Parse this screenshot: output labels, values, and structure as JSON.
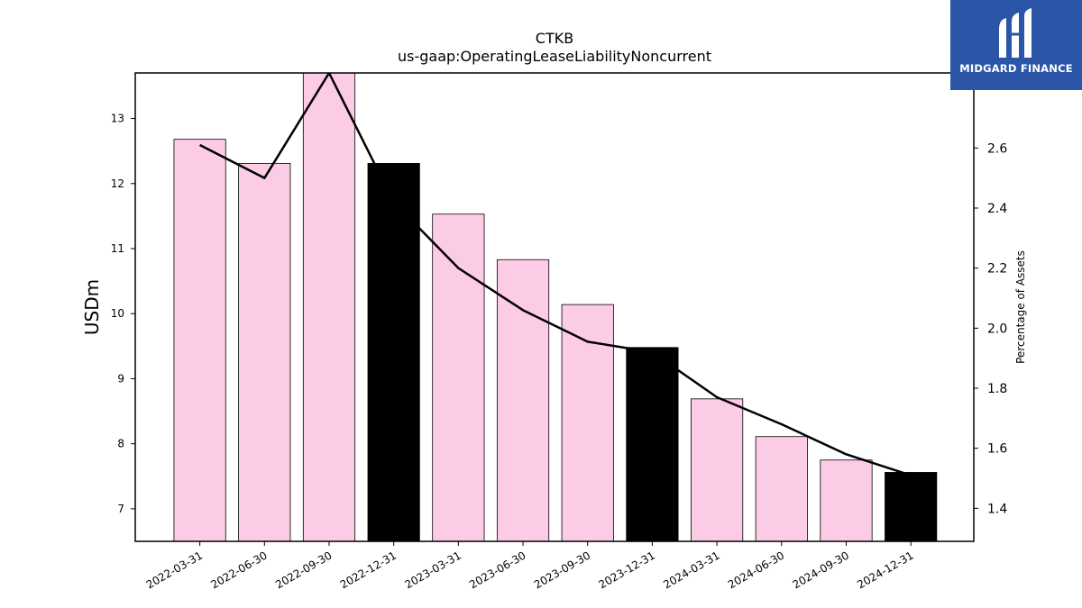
{
  "chart_data": {
    "type": "bar",
    "title": "CTKB",
    "subtitle": "us-gaap:OperatingLeaseLiabilityNoncurrent",
    "ylabel": "USDm",
    "y2label": "Percentage of Assets",
    "categories": [
      "2022-03-31",
      "2022-06-30",
      "2022-09-30",
      "2022-12-31",
      "2023-03-31",
      "2023-06-30",
      "2023-09-30",
      "2023-12-31",
      "2024-03-31",
      "2024-06-30",
      "2024-09-30",
      "2024-12-31"
    ],
    "values": [
      12.68,
      12.31,
      13.72,
      12.31,
      11.53,
      10.83,
      10.14,
      9.48,
      8.69,
      8.11,
      7.75,
      7.56
    ],
    "highlighted": [
      false,
      false,
      false,
      true,
      false,
      false,
      false,
      true,
      false,
      false,
      false,
      true
    ],
    "series": [
      {
        "type": "line",
        "values": [
          2.61,
          2.5,
          2.85,
          2.42,
          2.2,
          2.06,
          1.955,
          1.92,
          1.77,
          1.68,
          1.58,
          1.51
        ]
      }
    ],
    "ylim": [
      6.5,
      13.7
    ],
    "y2lim": [
      1.29,
      2.85
    ],
    "yticks": [
      7,
      8,
      9,
      10,
      11,
      12,
      13
    ],
    "y2ticks": [
      "1.4",
      "1.6",
      "1.8",
      "2.0",
      "2.2",
      "2.4",
      "2.6"
    ],
    "grid": false,
    "colors": {
      "bar": "#fccce6",
      "highlight": "#000000",
      "line": "#000000"
    }
  },
  "logo": {
    "text": "MIDGARD FINANCE",
    "icon": "midgard-logo-icon",
    "color": "#2b56a8"
  }
}
